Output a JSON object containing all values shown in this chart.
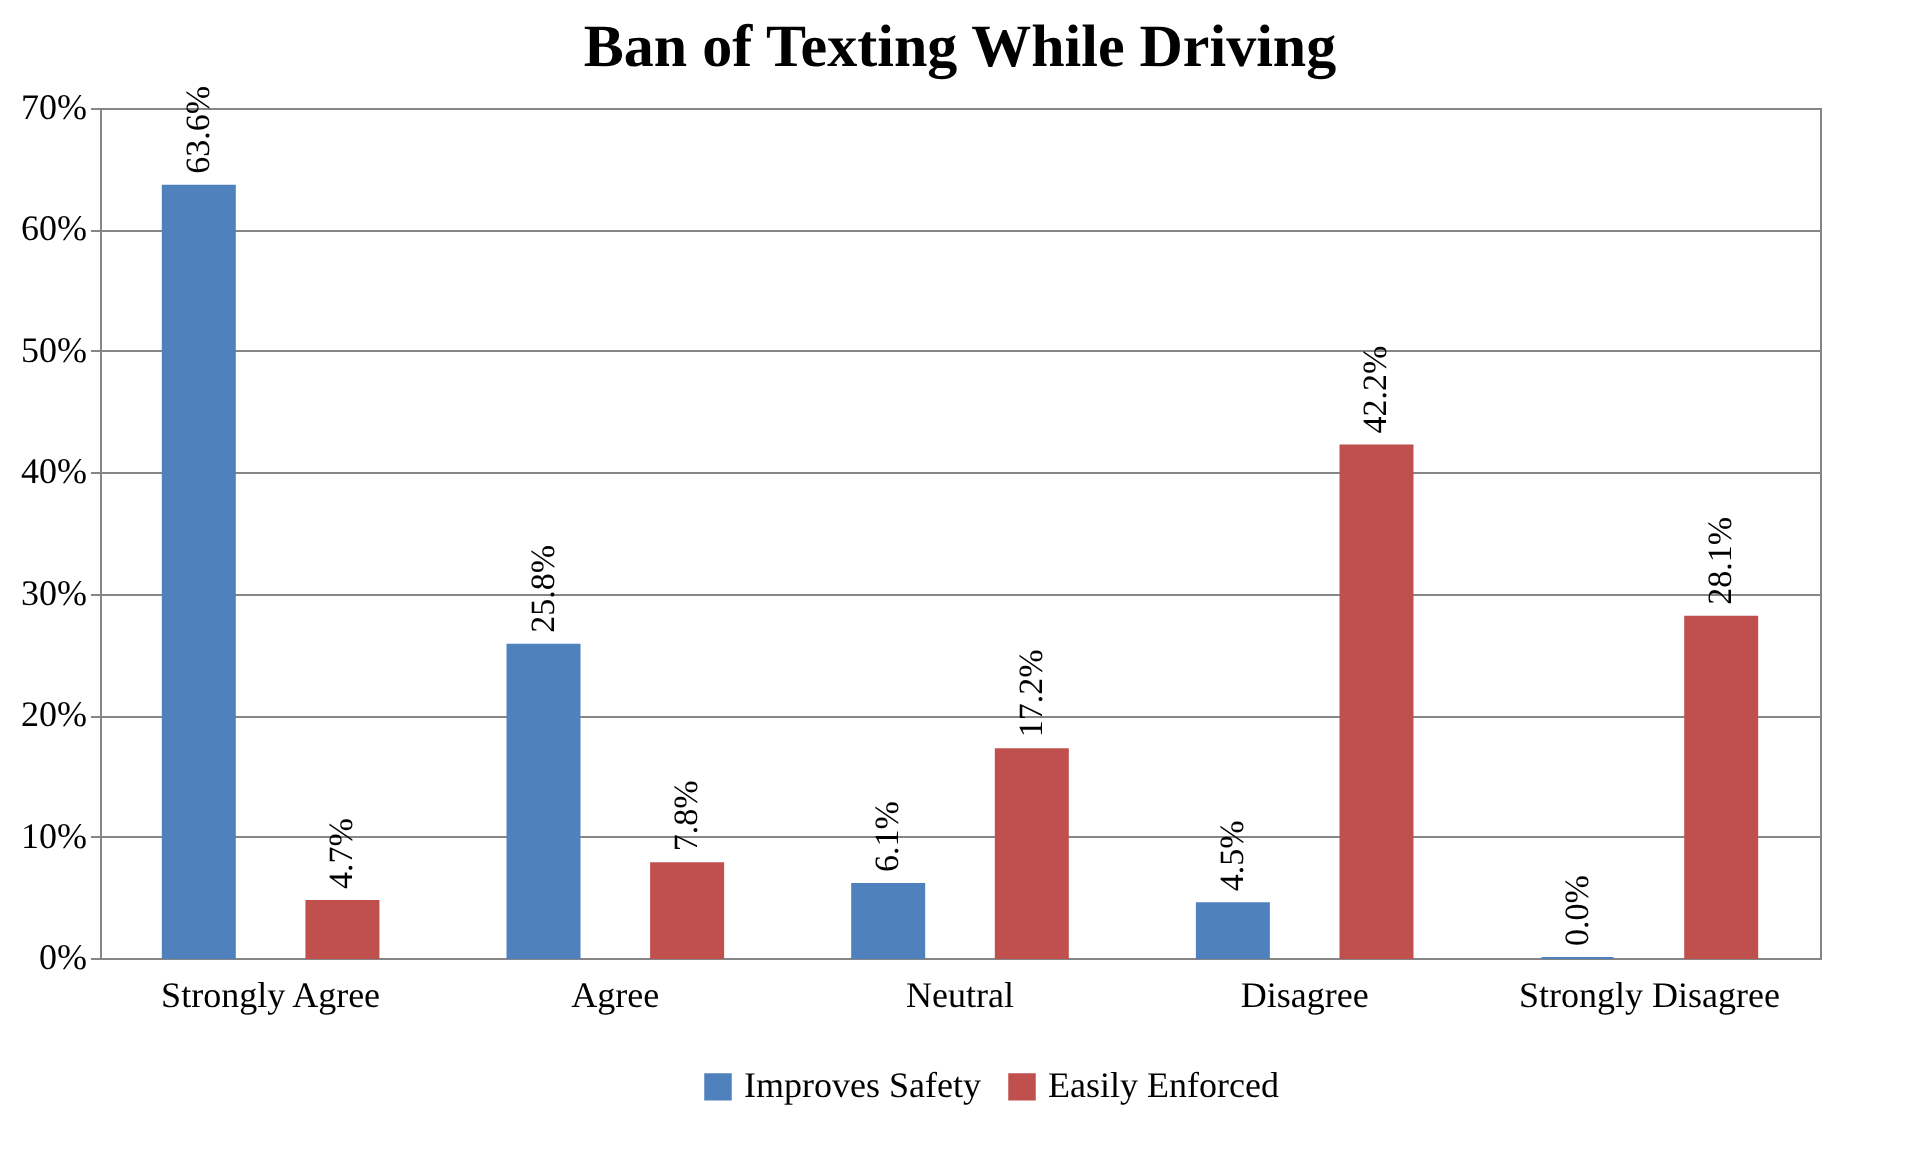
{
  "chart_data": {
    "type": "bar",
    "title": "Ban of Texting While Driving",
    "categories": [
      "Strongly Agree",
      "Agree",
      "Neutral",
      "Disagree",
      "Strongly Disagree"
    ],
    "series": [
      {
        "name": "Improves Safety",
        "color": "#4f81bd",
        "values": [
          63.6,
          25.8,
          6.1,
          4.5,
          0.0
        ],
        "value_labels": [
          "63.6%",
          "25.8%",
          "6.1%",
          "4.5%",
          "0.0%"
        ]
      },
      {
        "name": "Easily Enforced",
        "color": "#c0504d",
        "values": [
          4.7,
          7.8,
          17.2,
          42.2,
          28.1
        ],
        "value_labels": [
          "4.7%",
          "7.8%",
          "17.2%",
          "42.2%",
          "28.1%"
        ]
      }
    ],
    "ylim": [
      0,
      70
    ],
    "yticks": [
      {
        "value": 0,
        "label": "0%"
      },
      {
        "value": 10,
        "label": "10%"
      },
      {
        "value": 20,
        "label": "20%"
      },
      {
        "value": 30,
        "label": "30%"
      },
      {
        "value": 40,
        "label": "40%"
      },
      {
        "value": 50,
        "label": "50%"
      },
      {
        "value": 60,
        "label": "60%"
      },
      {
        "value": 70,
        "label": "70%"
      }
    ],
    "grid": "y",
    "legend": "bottom"
  }
}
